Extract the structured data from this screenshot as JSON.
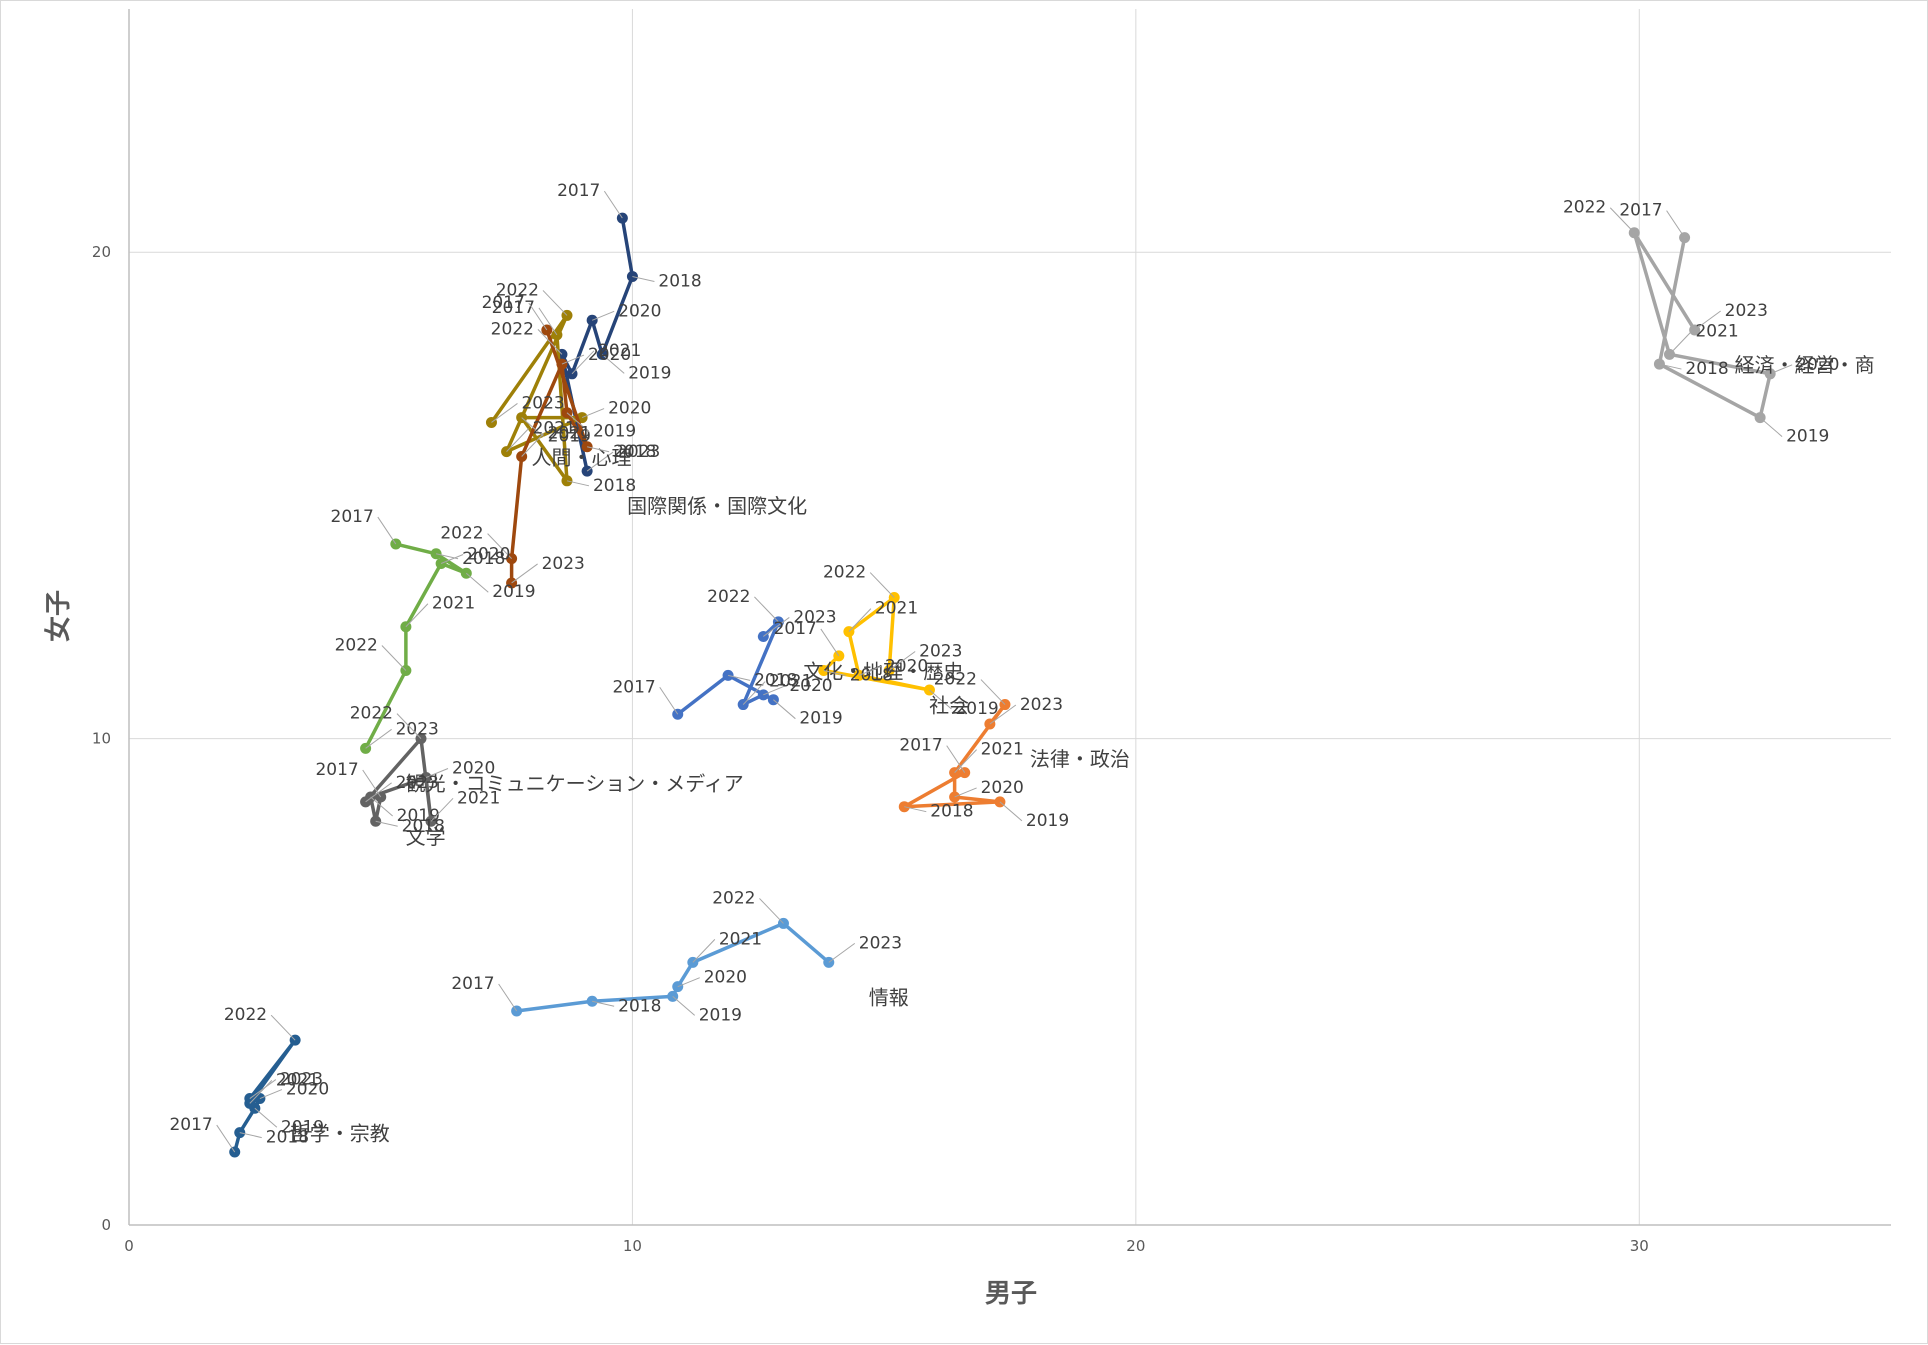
{
  "chart_data": {
    "type": "scatter",
    "mode": "connected-scatter",
    "xlabel": "男子",
    "ylabel": "女子",
    "xlim": [
      0,
      35
    ],
    "ylim": [
      0,
      25
    ],
    "x_ticks": [
      0,
      10,
      20,
      30
    ],
    "y_ticks": [
      0,
      10,
      20
    ],
    "grid": true,
    "series": [
      {
        "name": "経済・経営・商",
        "color": "#A5A5A5",
        "points": [
          {
            "label": "2017",
            "x": 30.9,
            "y": 20.3
          },
          {
            "label": "2018",
            "x": 30.4,
            "y": 17.7
          },
          {
            "label": "2019",
            "x": 32.4,
            "y": 16.6
          },
          {
            "label": "2020",
            "x": 32.6,
            "y": 17.5
          },
          {
            "label": "2021",
            "x": 30.6,
            "y": 17.9
          },
          {
            "label": "2022",
            "x": 29.9,
            "y": 20.4
          },
          {
            "label": "2023",
            "x": 31.1,
            "y": 18.4
          }
        ]
      },
      {
        "name": "国際関係・国際文化",
        "color": "#264478",
        "points": [
          {
            "label": "2017",
            "x": 9.8,
            "y": 20.7
          },
          {
            "label": "2018",
            "x": 10.0,
            "y": 19.5
          },
          {
            "label": "2019",
            "x": 9.4,
            "y": 17.9
          },
          {
            "label": "2020",
            "x": 9.2,
            "y": 18.6
          },
          {
            "label": "2021",
            "x": 8.8,
            "y": 17.5
          },
          {
            "label": "2022",
            "x": 8.6,
            "y": 17.9
          },
          {
            "label": "2023",
            "x": 9.1,
            "y": 15.5
          }
        ]
      },
      {
        "name": "人間・心理",
        "color": "#9E8008",
        "points": [
          {
            "label": "2017",
            "x": 8.5,
            "y": 18.3
          },
          {
            "label": "2018",
            "x": 8.7,
            "y": 15.3
          },
          {
            "label": "2019",
            "x": 7.8,
            "y": 16.6
          },
          {
            "label": "2020",
            "x": 9.0,
            "y": 16.6
          },
          {
            "label": "2021",
            "x": 7.5,
            "y": 15.9
          },
          {
            "label": "2022",
            "x": 8.7,
            "y": 18.7
          },
          {
            "label": "2023",
            "x": 7.2,
            "y": 16.5
          }
        ]
      },
      {
        "name": "",
        "color": "#9E480E",
        "points": [
          {
            "label": "2017",
            "x": 8.3,
            "y": 18.4
          },
          {
            "label": "2018",
            "x": 9.1,
            "y": 16.0
          },
          {
            "label": "2019",
            "x": 8.7,
            "y": 16.7
          },
          {
            "label": "2020",
            "x": 8.6,
            "y": 17.7
          },
          {
            "label": "2021",
            "x": 7.8,
            "y": 15.8
          },
          {
            "label": "2022",
            "x": 7.6,
            "y": 13.7
          },
          {
            "label": "2023",
            "x": 7.6,
            "y": 13.2
          }
        ]
      },
      {
        "name": "観光・コミュニケーション・メディア",
        "color": "#70AD47",
        "points": [
          {
            "label": "2017",
            "x": 5.3,
            "y": 14.0
          },
          {
            "label": "2018",
            "x": 6.1,
            "y": 13.8
          },
          {
            "label": "2019",
            "x": 6.7,
            "y": 13.4
          },
          {
            "label": "2020",
            "x": 6.2,
            "y": 13.6
          },
          {
            "label": "2021",
            "x": 5.5,
            "y": 12.3
          },
          {
            "label": "2022",
            "x": 5.5,
            "y": 11.4
          },
          {
            "label": "2023",
            "x": 4.7,
            "y": 9.8
          }
        ]
      },
      {
        "name": "文学",
        "color": "#636363",
        "points": [
          {
            "label": "2017",
            "x": 5.0,
            "y": 8.8
          },
          {
            "label": "2018",
            "x": 4.9,
            "y": 8.3
          },
          {
            "label": "2019",
            "x": 4.8,
            "y": 8.8
          },
          {
            "label": "2020",
            "x": 5.9,
            "y": 9.2
          },
          {
            "label": "2021",
            "x": 6.0,
            "y": 8.3
          },
          {
            "label": "2022",
            "x": 5.8,
            "y": 10.0
          },
          {
            "label": "2023",
            "x": 4.7,
            "y": 8.7
          }
        ]
      },
      {
        "name": "文化・地理・歴史",
        "color": "#4472C4",
        "points": [
          {
            "label": "2017",
            "x": 10.9,
            "y": 10.5
          },
          {
            "label": "2018",
            "x": 11.9,
            "y": 11.3
          },
          {
            "label": "2019",
            "x": 12.8,
            "y": 10.8
          },
          {
            "label": "2020",
            "x": 12.6,
            "y": 10.9
          },
          {
            "label": "2021",
            "x": 12.2,
            "y": 10.7
          },
          {
            "label": "2022",
            "x": 12.9,
            "y": 12.4
          },
          {
            "label": "2023",
            "x": 12.6,
            "y": 12.1
          }
        ]
      },
      {
        "name": "社会",
        "color": "#FFC000",
        "points": [
          {
            "label": "2017",
            "x": 14.1,
            "y": 11.7
          },
          {
            "label": "2018",
            "x": 13.8,
            "y": 11.4
          },
          {
            "label": "2019",
            "x": 15.9,
            "y": 11.0
          },
          {
            "label": "2020",
            "x": 14.5,
            "y": 11.3
          },
          {
            "label": "2021",
            "x": 14.3,
            "y": 12.2
          },
          {
            "label": "2022",
            "x": 15.2,
            "y": 12.9
          },
          {
            "label": "2023",
            "x": 15.1,
            "y": 11.4
          }
        ]
      },
      {
        "name": "法律・政治",
        "color": "#ED7D31",
        "points": [
          {
            "label": "2017",
            "x": 16.6,
            "y": 9.3
          },
          {
            "label": "2018",
            "x": 15.4,
            "y": 8.6
          },
          {
            "label": "2019",
            "x": 17.3,
            "y": 8.7
          },
          {
            "label": "2020",
            "x": 16.4,
            "y": 8.8
          },
          {
            "label": "2021",
            "x": 16.4,
            "y": 9.3
          },
          {
            "label": "2022",
            "x": 17.4,
            "y": 10.7
          },
          {
            "label": "2023",
            "x": 17.1,
            "y": 10.3
          }
        ]
      },
      {
        "name": "情報",
        "color": "#5B9BD5",
        "points": [
          {
            "label": "2017",
            "x": 7.7,
            "y": 4.4
          },
          {
            "label": "2018",
            "x": 9.2,
            "y": 4.6
          },
          {
            "label": "2019",
            "x": 10.8,
            "y": 4.7
          },
          {
            "label": "2020",
            "x": 10.9,
            "y": 4.9
          },
          {
            "label": "2021",
            "x": 11.2,
            "y": 5.4
          },
          {
            "label": "2022",
            "x": 13.0,
            "y": 6.2
          },
          {
            "label": "2023",
            "x": 13.9,
            "y": 5.4
          }
        ]
      },
      {
        "name": "哲学・宗教",
        "color": "#255E91",
        "points": [
          {
            "label": "2017",
            "x": 2.1,
            "y": 1.5
          },
          {
            "label": "2018",
            "x": 2.2,
            "y": 1.9
          },
          {
            "label": "2019",
            "x": 2.5,
            "y": 2.4
          },
          {
            "label": "2020",
            "x": 2.6,
            "y": 2.6
          },
          {
            "label": "2021",
            "x": 2.4,
            "y": 2.5
          },
          {
            "label": "2022",
            "x": 3.3,
            "y": 3.8
          },
          {
            "label": "2023",
            "x": 2.4,
            "y": 2.6
          }
        ]
      }
    ]
  }
}
